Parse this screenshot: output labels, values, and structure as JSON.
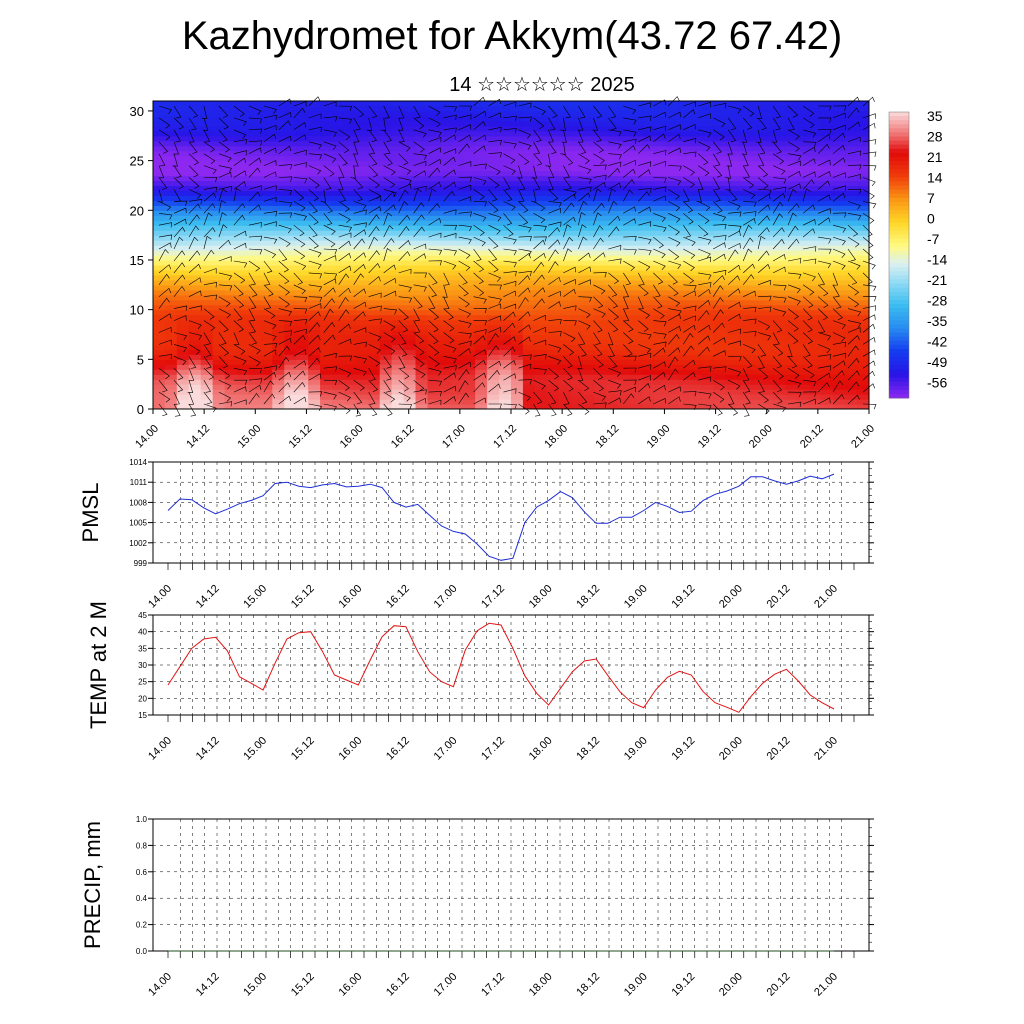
{
  "title": "Kazhydromet for Akkym(43.72 67.42)",
  "subtitle": "14 ☆☆☆☆☆☆ 2025",
  "colors": {
    "pmsl_line": "#1f2fd6",
    "temp_line": "#e01515",
    "precip_line": "#1f4f1f",
    "grid": "#000000"
  },
  "time_labels": [
    "14.00",
    "14.12",
    "15.00",
    "15.12",
    "16.00",
    "16.12",
    "17.00",
    "17.12",
    "18.00",
    "18.12",
    "19.00",
    "19.12",
    "20.00",
    "20.12",
    "21.00"
  ],
  "charts": [
    {
      "id": "cross_section",
      "chart_data": {
        "type": "heatmap",
        "x": [
          "14.00",
          "14.12",
          "15.00",
          "15.12",
          "16.00",
          "16.12",
          "17.00",
          "17.12",
          "18.00",
          "18.12",
          "19.00",
          "19.12",
          "20.00",
          "20.12",
          "21.00"
        ],
        "y_ticks": [
          0,
          5,
          10,
          15,
          20,
          25,
          30
        ],
        "ylim": [
          0,
          31
        ],
        "colorbar_labels": [
          "35",
          "28",
          "21",
          "14",
          "7",
          "0",
          "-7",
          "-14",
          "-21",
          "-28",
          "-35",
          "-42",
          "-49",
          "-56"
        ],
        "colorbar_range": [
          -60,
          38
        ],
        "overlay": "wind barbs",
        "temperature_profile_by_height_km": [
          {
            "z": 0,
            "t": 30
          },
          {
            "z": 3,
            "t": 27
          },
          {
            "z": 6,
            "t": 20
          },
          {
            "z": 9,
            "t": 17
          },
          {
            "z": 12,
            "t": 8
          },
          {
            "z": 14,
            "t": 0
          },
          {
            "z": 16,
            "t": -12
          },
          {
            "z": 18,
            "t": -25
          },
          {
            "z": 20,
            "t": -38
          },
          {
            "z": 22,
            "t": -52
          },
          {
            "z": 24,
            "t": -60
          },
          {
            "z": 26,
            "t": -58
          },
          {
            "z": 28,
            "t": -52
          },
          {
            "z": 31,
            "t": -48
          }
        ]
      }
    },
    {
      "id": "pmsl",
      "chart_data": {
        "type": "line",
        "ylabel": "PMSL",
        "ylim": [
          999,
          1014
        ],
        "y_ticks": [
          999,
          1002,
          1005,
          1008,
          1011,
          1014
        ],
        "x_labels": [
          "14.00",
          "14.12",
          "15.00",
          "15.12",
          "16.00",
          "16.12",
          "17.00",
          "17.12",
          "18.00",
          "18.12",
          "19.00",
          "19.12",
          "20.00",
          "20.12",
          "21.00"
        ],
        "series": [
          {
            "values": [
              1006.8,
              1008.5,
              1008.4,
              1007.2,
              1006.3,
              1007.0,
              1007.8,
              1008.3,
              1009.0,
              1010.8,
              1011.0,
              1010.4,
              1010.2,
              1010.6,
              1010.8,
              1010.3,
              1010.4,
              1010.7,
              1010.2,
              1008.0,
              1007.3,
              1007.7,
              1006.1,
              1004.5,
              1003.7,
              1003.3,
              1001.8,
              1000.0,
              999.4,
              999.7,
              1005.0,
              1007.3,
              1008.3,
              1009.6,
              1008.7,
              1006.6,
              1004.9,
              1004.9,
              1005.8,
              1005.8,
              1006.8,
              1008.0,
              1007.4,
              1006.5,
              1006.7,
              1008.3,
              1009.2,
              1009.7,
              1010.4,
              1011.8,
              1011.8,
              1011.2,
              1010.7,
              1011.2,
              1011.9,
              1011.5,
              1012.2
            ]
          }
        ]
      }
    },
    {
      "id": "temp",
      "chart_data": {
        "type": "line",
        "ylabel": "TEMP at 2 M",
        "ylim": [
          15,
          45
        ],
        "y_ticks": [
          15,
          20,
          25,
          30,
          35,
          40,
          45
        ],
        "x_labels": [
          "14.00",
          "14.12",
          "15.00",
          "15.12",
          "16.00",
          "16.12",
          "17.00",
          "17.12",
          "18.00",
          "18.12",
          "19.00",
          "19.12",
          "20.00",
          "20.12",
          "21.00"
        ],
        "series": [
          {
            "values": [
              24.0,
              29.5,
              35.0,
              37.8,
              38.3,
              34.2,
              26.5,
              24.5,
              22.5,
              30.5,
              37.8,
              39.7,
              40.0,
              34.0,
              27.0,
              25.5,
              24.0,
              31.5,
              38.5,
              41.8,
              41.5,
              34.0,
              28.0,
              25.0,
              23.5,
              34.5,
              40.3,
              42.5,
              42.0,
              35.0,
              26.8,
              21.5,
              18.0,
              23.0,
              28.0,
              31.2,
              31.8,
              26.8,
              22.0,
              18.7,
              17.2,
              22.5,
              26.3,
              28.1,
              27.0,
              22.0,
              18.7,
              17.3,
              15.8,
              20.5,
              24.5,
              27.2,
              28.7,
              25.2,
              21.0,
              18.7,
              16.8
            ]
          }
        ]
      }
    },
    {
      "id": "precip",
      "chart_data": {
        "type": "line",
        "ylabel": "PRECIP, mm",
        "ylim": [
          0,
          1
        ],
        "y_ticks": [
          "0.0",
          "0.2",
          "0.4",
          "0.6",
          "0.8",
          "1.0"
        ],
        "x_labels": [
          "14.00",
          "14.12",
          "15.00",
          "15.12",
          "16.00",
          "16.12",
          "17.00",
          "17.12",
          "18.00",
          "18.12",
          "19.00",
          "19.12",
          "20.00",
          "20.12",
          "21.00"
        ],
        "series": [
          {
            "values": [
              0,
              0,
              0,
              0,
              0,
              0,
              0,
              0,
              0,
              0,
              0,
              0,
              0,
              0,
              0,
              0,
              0,
              0,
              0,
              0,
              0,
              0,
              0,
              0,
              0,
              0,
              0,
              0,
              0,
              0,
              0,
              0,
              0,
              0,
              0,
              0,
              0,
              0,
              0,
              0,
              0,
              0,
              0,
              0,
              0,
              0,
              0,
              0,
              0,
              0,
              0,
              0,
              0,
              0,
              0,
              0,
              0
            ]
          }
        ]
      }
    }
  ]
}
